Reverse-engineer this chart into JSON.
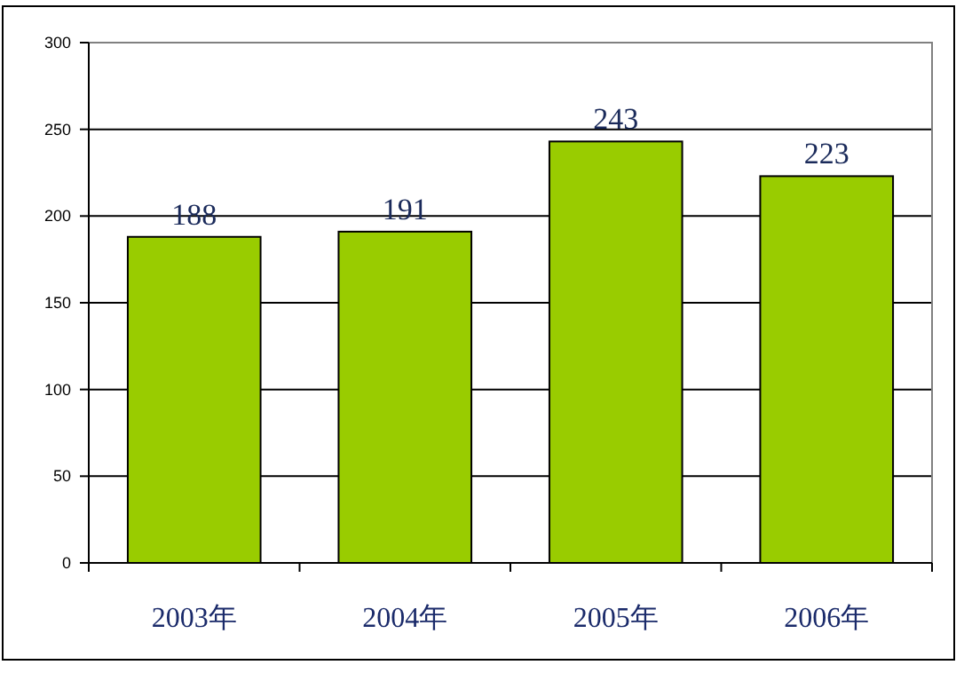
{
  "chart_data": {
    "type": "bar",
    "categories": [
      "2003年",
      "2004年",
      "2005年",
      "2006年"
    ],
    "values": [
      188,
      191,
      243,
      223
    ],
    "color": "#99cc00",
    "ylim": [
      0,
      300
    ],
    "yticks": [
      0,
      50,
      100,
      150,
      200,
      250,
      300
    ],
    "grid": "y",
    "data_labels": true
  }
}
